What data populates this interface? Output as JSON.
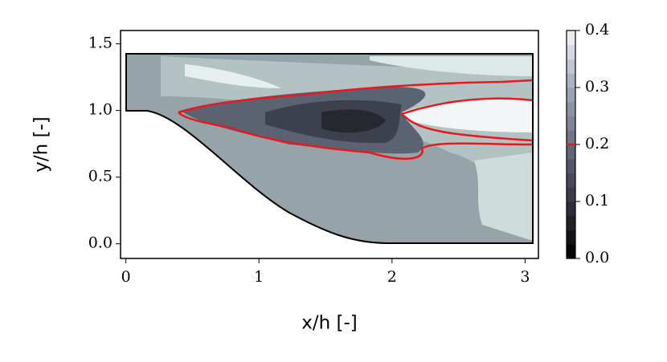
{
  "chart_data": {
    "type": "contour",
    "xlabel": "x/h [-]",
    "ylabel": "y/h [-]",
    "xlim": [
      -0.04,
      3.1
    ],
    "ylim": [
      -0.11,
      1.6
    ],
    "xticks": [
      0,
      1,
      2,
      3
    ],
    "yticks": [
      {
        "value": 0,
        "label": "0.0"
      },
      {
        "value": 0.5,
        "label": "0.5"
      },
      {
        "value": 1,
        "label": "1.0"
      },
      {
        "value": 1.5,
        "label": "1.5"
      }
    ],
    "colorbar": {
      "clim": [
        0,
        0.4
      ],
      "ticks": [
        {
          "value": 0,
          "label": "0.0"
        },
        {
          "value": 0.1,
          "label": "0.1"
        },
        {
          "value": 0.2,
          "label": "0.2"
        },
        {
          "value": 0.3,
          "label": "0.3"
        },
        {
          "value": 0.4,
          "label": "0.4"
        }
      ]
    },
    "contour_level": 0.2,
    "contour_color": "#e8191b"
  }
}
